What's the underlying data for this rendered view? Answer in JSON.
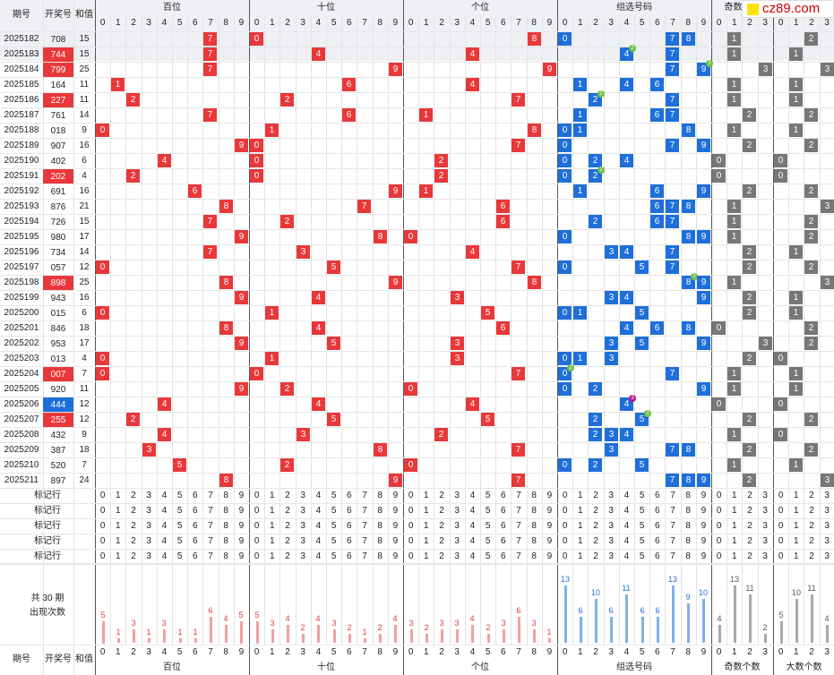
{
  "header": {
    "c_period": "期号",
    "c_num": "开奖号",
    "c_sum": "和值",
    "sections": [
      "百位",
      "十位",
      "个位",
      "组选号码",
      "奇数个数",
      "大数个数"
    ]
  },
  "digits": [
    "0",
    "1",
    "2",
    "3",
    "4",
    "5",
    "6",
    "7",
    "8",
    "9"
  ],
  "counts4": [
    "0",
    "1",
    "2",
    "3"
  ],
  "rows": [
    [
      "2025182",
      "708",
      "15",
      ""
    ],
    [
      "2025183",
      "744",
      "15",
      "r"
    ],
    [
      "2025184",
      "799",
      "25",
      "r"
    ],
    [
      "2025185",
      "164",
      "11",
      ""
    ],
    [
      "2025186",
      "227",
      "11",
      "r"
    ],
    [
      "2025187",
      "761",
      "14",
      ""
    ],
    [
      "2025188",
      "018",
      "9",
      ""
    ],
    [
      "2025189",
      "907",
      "16",
      ""
    ],
    [
      "2025190",
      "402",
      "6",
      ""
    ],
    [
      "2025191",
      "202",
      "4",
      "r"
    ],
    [
      "2025192",
      "691",
      "16",
      ""
    ],
    [
      "2025193",
      "876",
      "21",
      ""
    ],
    [
      "2025194",
      "726",
      "15",
      ""
    ],
    [
      "2025195",
      "980",
      "17",
      ""
    ],
    [
      "2025196",
      "734",
      "14",
      ""
    ],
    [
      "2025197",
      "057",
      "12",
      ""
    ],
    [
      "2025198",
      "898",
      "25",
      "r"
    ],
    [
      "2025199",
      "943",
      "16",
      ""
    ],
    [
      "2025200",
      "015",
      "6",
      ""
    ],
    [
      "2025201",
      "846",
      "18",
      ""
    ],
    [
      "2025202",
      "953",
      "17",
      ""
    ],
    [
      "2025203",
      "013",
      "4",
      ""
    ],
    [
      "2025204",
      "007",
      "7",
      "r"
    ],
    [
      "2025205",
      "920",
      "11",
      ""
    ],
    [
      "2025206",
      "444",
      "12",
      "b"
    ],
    [
      "2025207",
      "255",
      "12",
      "r"
    ],
    [
      "2025208",
      "432",
      "9",
      ""
    ],
    [
      "2025209",
      "387",
      "18",
      ""
    ],
    [
      "2025210",
      "520",
      "7",
      ""
    ],
    [
      "2025211",
      "897",
      "24",
      ""
    ]
  ],
  "marker_label": "标记行",
  "summary": {
    "line1": "共 30 期",
    "line2": "出现次数"
  },
  "freq": {
    "hundreds": [
      5,
      1,
      3,
      1,
      3,
      1,
      1,
      6,
      4,
      5
    ],
    "tens": [
      5,
      3,
      4,
      2,
      4,
      3,
      2,
      1,
      2,
      4
    ],
    "units": [
      3,
      2,
      3,
      3,
      4,
      2,
      3,
      6,
      3,
      1
    ],
    "group": [
      13,
      6,
      10,
      6,
      11,
      6,
      6,
      13,
      9,
      10
    ],
    "odd": [
      4,
      13,
      11,
      2
    ],
    "big": [
      5,
      10,
      11,
      4
    ]
  },
  "logo": "cz89.com",
  "colors": {
    "red": "#e8383a",
    "blue": "#1e6fd9",
    "gray": "#777777",
    "bar_red": "#f3a0a0",
    "bar_blue": "#7fb0ea",
    "bar_gray": "#a9a9a9"
  }
}
